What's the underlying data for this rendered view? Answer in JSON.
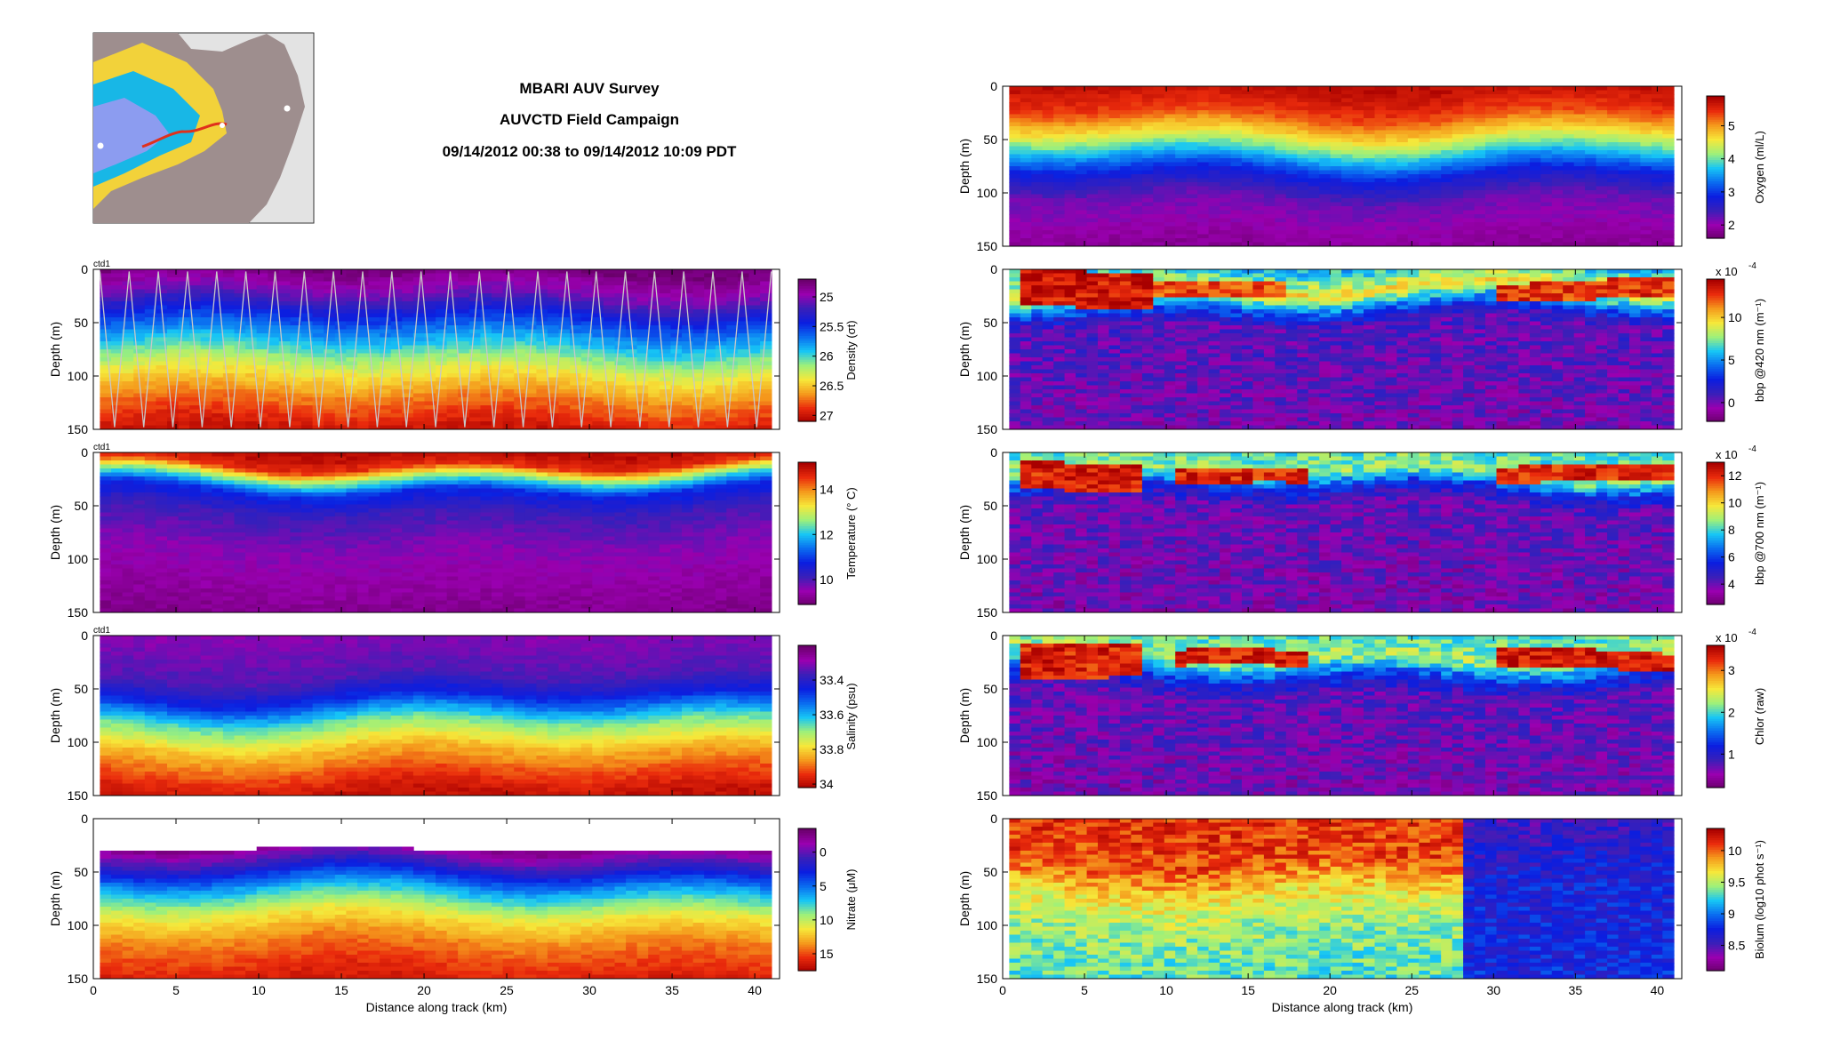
{
  "header": {
    "title": "MBARI AUV Survey",
    "subtitle": "AUVCTD Field Campaign",
    "time_range": "09/14/2012 00:38 to 09/14/2012 10:09 PDT"
  },
  "colors": {
    "colormap": [
      "#6a006a",
      "#9a00b0",
      "#3a1fb8",
      "#0b1ee0",
      "#0a6cf0",
      "#17c6f5",
      "#9ef07a",
      "#f6e83a",
      "#f59a1c",
      "#ea2b0c",
      "#a80000"
    ],
    "profile_lines": "#c8c8c8",
    "map_land": "#9e8e8e",
    "map_background": "#e3e3e3"
  },
  "chart_data": [
    {
      "type": "heatmap",
      "panel": "density",
      "tag": "ctd1",
      "xlabel": "",
      "ylabel": "Depth (m)",
      "xlim": [
        0,
        41.5
      ],
      "ylim": [
        150,
        0
      ],
      "yticks": [
        0,
        50,
        100,
        150
      ],
      "colorbar": {
        "label": "Density (σt)",
        "ticks": [
          "25",
          "25.5",
          "26",
          "26.5",
          "27"
        ],
        "range": [
          24.7,
          27.1
        ],
        "reversed": true
      },
      "profiles": true,
      "layers": [
        {
          "depth": 0,
          "value": 0.02
        },
        {
          "depth": 25,
          "value": 0.15
        },
        {
          "depth": 45,
          "value": 0.32
        },
        {
          "depth": 70,
          "value": 0.5
        },
        {
          "depth": 95,
          "value": 0.68
        },
        {
          "depth": 120,
          "value": 0.82
        },
        {
          "depth": 150,
          "value": 0.95
        }
      ]
    },
    {
      "type": "heatmap",
      "panel": "temperature",
      "tag": "ctd1",
      "xlabel": "",
      "ylabel": "Depth (m)",
      "xlim": [
        0,
        41.5
      ],
      "ylim": [
        150,
        0
      ],
      "yticks": [
        0,
        50,
        100,
        150
      ],
      "colorbar": {
        "label": "Temperature (° C)",
        "ticks": [
          "14",
          "12",
          "10"
        ],
        "range": [
          8.9,
          15.2
        ],
        "reversed": false
      },
      "layers": [
        {
          "depth": 0,
          "value": 0.97
        },
        {
          "depth": 12,
          "value": 0.9
        },
        {
          "depth": 22,
          "value": 0.6
        },
        {
          "depth": 35,
          "value": 0.32
        },
        {
          "depth": 55,
          "value": 0.2
        },
        {
          "depth": 90,
          "value": 0.12
        },
        {
          "depth": 150,
          "value": 0.05
        }
      ]
    },
    {
      "type": "heatmap",
      "panel": "salinity",
      "tag": "ctd1",
      "xlabel": "",
      "ylabel": "Depth (m)",
      "xlim": [
        0,
        41.5
      ],
      "ylim": [
        150,
        0
      ],
      "yticks": [
        0,
        50,
        100,
        150
      ],
      "colorbar": {
        "label": "Salinity (psu)",
        "ticks": [
          "33.4",
          "33.6",
          "33.8",
          "34"
        ],
        "range": [
          33.2,
          34.02
        ],
        "reversed": true
      },
      "layers": [
        {
          "depth": 0,
          "value": 0.12
        },
        {
          "depth": 40,
          "value": 0.18
        },
        {
          "depth": 60,
          "value": 0.32
        },
        {
          "depth": 80,
          "value": 0.55
        },
        {
          "depth": 105,
          "value": 0.75
        },
        {
          "depth": 130,
          "value": 0.88
        },
        {
          "depth": 150,
          "value": 0.96
        }
      ]
    },
    {
      "type": "heatmap",
      "panel": "nitrate",
      "tag": "",
      "xlabel": "Distance along track (km)",
      "ylabel": "Depth (m)",
      "xlim": [
        0,
        41.5
      ],
      "ylim": [
        150,
        0
      ],
      "xticks": [
        0,
        5,
        10,
        15,
        20,
        25,
        30,
        35,
        40
      ],
      "yticks": [
        0,
        50,
        100,
        150
      ],
      "colorbar": {
        "label": "Nitrate (μM)",
        "ticks": [
          "0",
          "5",
          "10",
          "15"
        ],
        "range": [
          -3.5,
          17.5
        ],
        "reversed": true
      },
      "top_depth": 28,
      "layers": [
        {
          "depth": 28,
          "value": 0.05
        },
        {
          "depth": 45,
          "value": 0.22
        },
        {
          "depth": 65,
          "value": 0.45
        },
        {
          "depth": 90,
          "value": 0.68
        },
        {
          "depth": 115,
          "value": 0.82
        },
        {
          "depth": 150,
          "value": 0.93
        }
      ]
    },
    {
      "type": "heatmap",
      "panel": "oxygen",
      "tag": "",
      "xlabel": "",
      "ylabel": "Depth (m)",
      "xlim": [
        0,
        41.5
      ],
      "ylim": [
        150,
        0
      ],
      "yticks": [
        0,
        50,
        100,
        150
      ],
      "colorbar": {
        "label": "Oxygen (ml/L)",
        "ticks": [
          "5",
          "4",
          "3",
          "2"
        ],
        "range": [
          1.6,
          5.9
        ],
        "reversed": false
      },
      "layers": [
        {
          "depth": 0,
          "value": 0.97
        },
        {
          "depth": 25,
          "value": 0.88
        },
        {
          "depth": 45,
          "value": 0.7
        },
        {
          "depth": 62,
          "value": 0.5
        },
        {
          "depth": 80,
          "value": 0.3
        },
        {
          "depth": 105,
          "value": 0.15
        },
        {
          "depth": 150,
          "value": 0.06
        }
      ]
    },
    {
      "type": "heatmap",
      "panel": "bbp420",
      "tag": "",
      "xlabel": "",
      "ylabel": "Depth (m)",
      "xlim": [
        0,
        41.5
      ],
      "ylim": [
        150,
        0
      ],
      "yticks": [
        0,
        50,
        100,
        150
      ],
      "colorbar": {
        "label": "bbp @420 nm (m⁻¹)",
        "exponent": "x 10",
        "exponent_power": "-4",
        "ticks": [
          "10",
          "5",
          "0"
        ],
        "range": [
          -2.2,
          14.5
        ],
        "reversed": false
      },
      "layers": [
        {
          "depth": 0,
          "value": 0.5
        },
        {
          "depth": 20,
          "value": 0.72
        },
        {
          "depth": 35,
          "value": 0.4
        },
        {
          "depth": 50,
          "value": 0.18
        },
        {
          "depth": 150,
          "value": 0.13
        }
      ],
      "patches": [
        {
          "x0": 1,
          "x1": 9,
          "d0": 3,
          "d1": 35,
          "value": 0.95
        },
        {
          "x0": 9,
          "x1": 17,
          "d0": 12,
          "d1": 25,
          "value": 0.88
        },
        {
          "x0": 30,
          "x1": 41,
          "d0": 10,
          "d1": 26,
          "value": 0.9
        }
      ]
    },
    {
      "type": "heatmap",
      "panel": "bbp700",
      "tag": "",
      "xlabel": "",
      "ylabel": "Depth (m)",
      "xlim": [
        0,
        41.5
      ],
      "ylim": [
        150,
        0
      ],
      "yticks": [
        0,
        50,
        100,
        150
      ],
      "colorbar": {
        "label": "bbp @700 nm (m⁻¹)",
        "exponent": "x 10",
        "exponent_power": "-4",
        "ticks": [
          "12",
          "10",
          "8",
          "6",
          "4"
        ],
        "range": [
          2.5,
          13
        ],
        "reversed": false
      },
      "layers": [
        {
          "depth": 0,
          "value": 0.55
        },
        {
          "depth": 20,
          "value": 0.6
        },
        {
          "depth": 35,
          "value": 0.3
        },
        {
          "depth": 50,
          "value": 0.16
        },
        {
          "depth": 150,
          "value": 0.12
        }
      ],
      "patches": [
        {
          "x0": 1,
          "x1": 8,
          "d0": 8,
          "d1": 32,
          "value": 0.93
        },
        {
          "x0": 10,
          "x1": 18,
          "d0": 15,
          "d1": 27,
          "value": 0.92
        },
        {
          "x0": 30,
          "x1": 41,
          "d0": 14,
          "d1": 28,
          "value": 0.92
        }
      ]
    },
    {
      "type": "heatmap",
      "panel": "chlor",
      "tag": "",
      "xlabel": "",
      "ylabel": "Depth (m)",
      "xlim": [
        0,
        41.5
      ],
      "ylim": [
        150,
        0
      ],
      "yticks": [
        0,
        50,
        100,
        150
      ],
      "colorbar": {
        "label": "Chlor (raw)",
        "exponent": "x 10",
        "exponent_power": "-4",
        "ticks": [
          "3",
          "2",
          "1"
        ],
        "range": [
          0.2,
          3.6
        ],
        "reversed": false
      },
      "layers": [
        {
          "depth": 0,
          "value": 0.55
        },
        {
          "depth": 20,
          "value": 0.62
        },
        {
          "depth": 40,
          "value": 0.3
        },
        {
          "depth": 55,
          "value": 0.17
        },
        {
          "depth": 150,
          "value": 0.12
        }
      ],
      "patches": [
        {
          "x0": 1,
          "x1": 8,
          "d0": 5,
          "d1": 35,
          "value": 0.93
        },
        {
          "x0": 10,
          "x1": 18,
          "d0": 15,
          "d1": 28,
          "value": 0.94
        },
        {
          "x0": 30,
          "x1": 41,
          "d0": 15,
          "d1": 30,
          "value": 0.94
        }
      ]
    },
    {
      "type": "heatmap",
      "panel": "biolum",
      "tag": "",
      "xlabel": "Distance along track (km)",
      "ylabel": "Depth (m)",
      "xlim": [
        0,
        41.5
      ],
      "ylim": [
        150,
        0
      ],
      "xticks": [
        0,
        5,
        10,
        15,
        20,
        25,
        30,
        35,
        40
      ],
      "yticks": [
        0,
        50,
        100,
        150
      ],
      "colorbar": {
        "label": "Biolum (log10 phot s⁻¹)",
        "ticks": [
          "10",
          "9.5",
          "9",
          "8.5"
        ],
        "range": [
          8.1,
          10.35
        ],
        "reversed": false
      },
      "split_km": 28,
      "layers": [
        {
          "depth": 0,
          "value": 0.9
        },
        {
          "depth": 40,
          "value": 0.88
        },
        {
          "depth": 70,
          "value": 0.7
        },
        {
          "depth": 100,
          "value": 0.6
        },
        {
          "depth": 150,
          "value": 0.55
        }
      ],
      "right_layers": [
        {
          "depth": 0,
          "value": 0.2
        },
        {
          "depth": 60,
          "value": 0.28
        },
        {
          "depth": 150,
          "value": 0.3
        }
      ]
    }
  ]
}
